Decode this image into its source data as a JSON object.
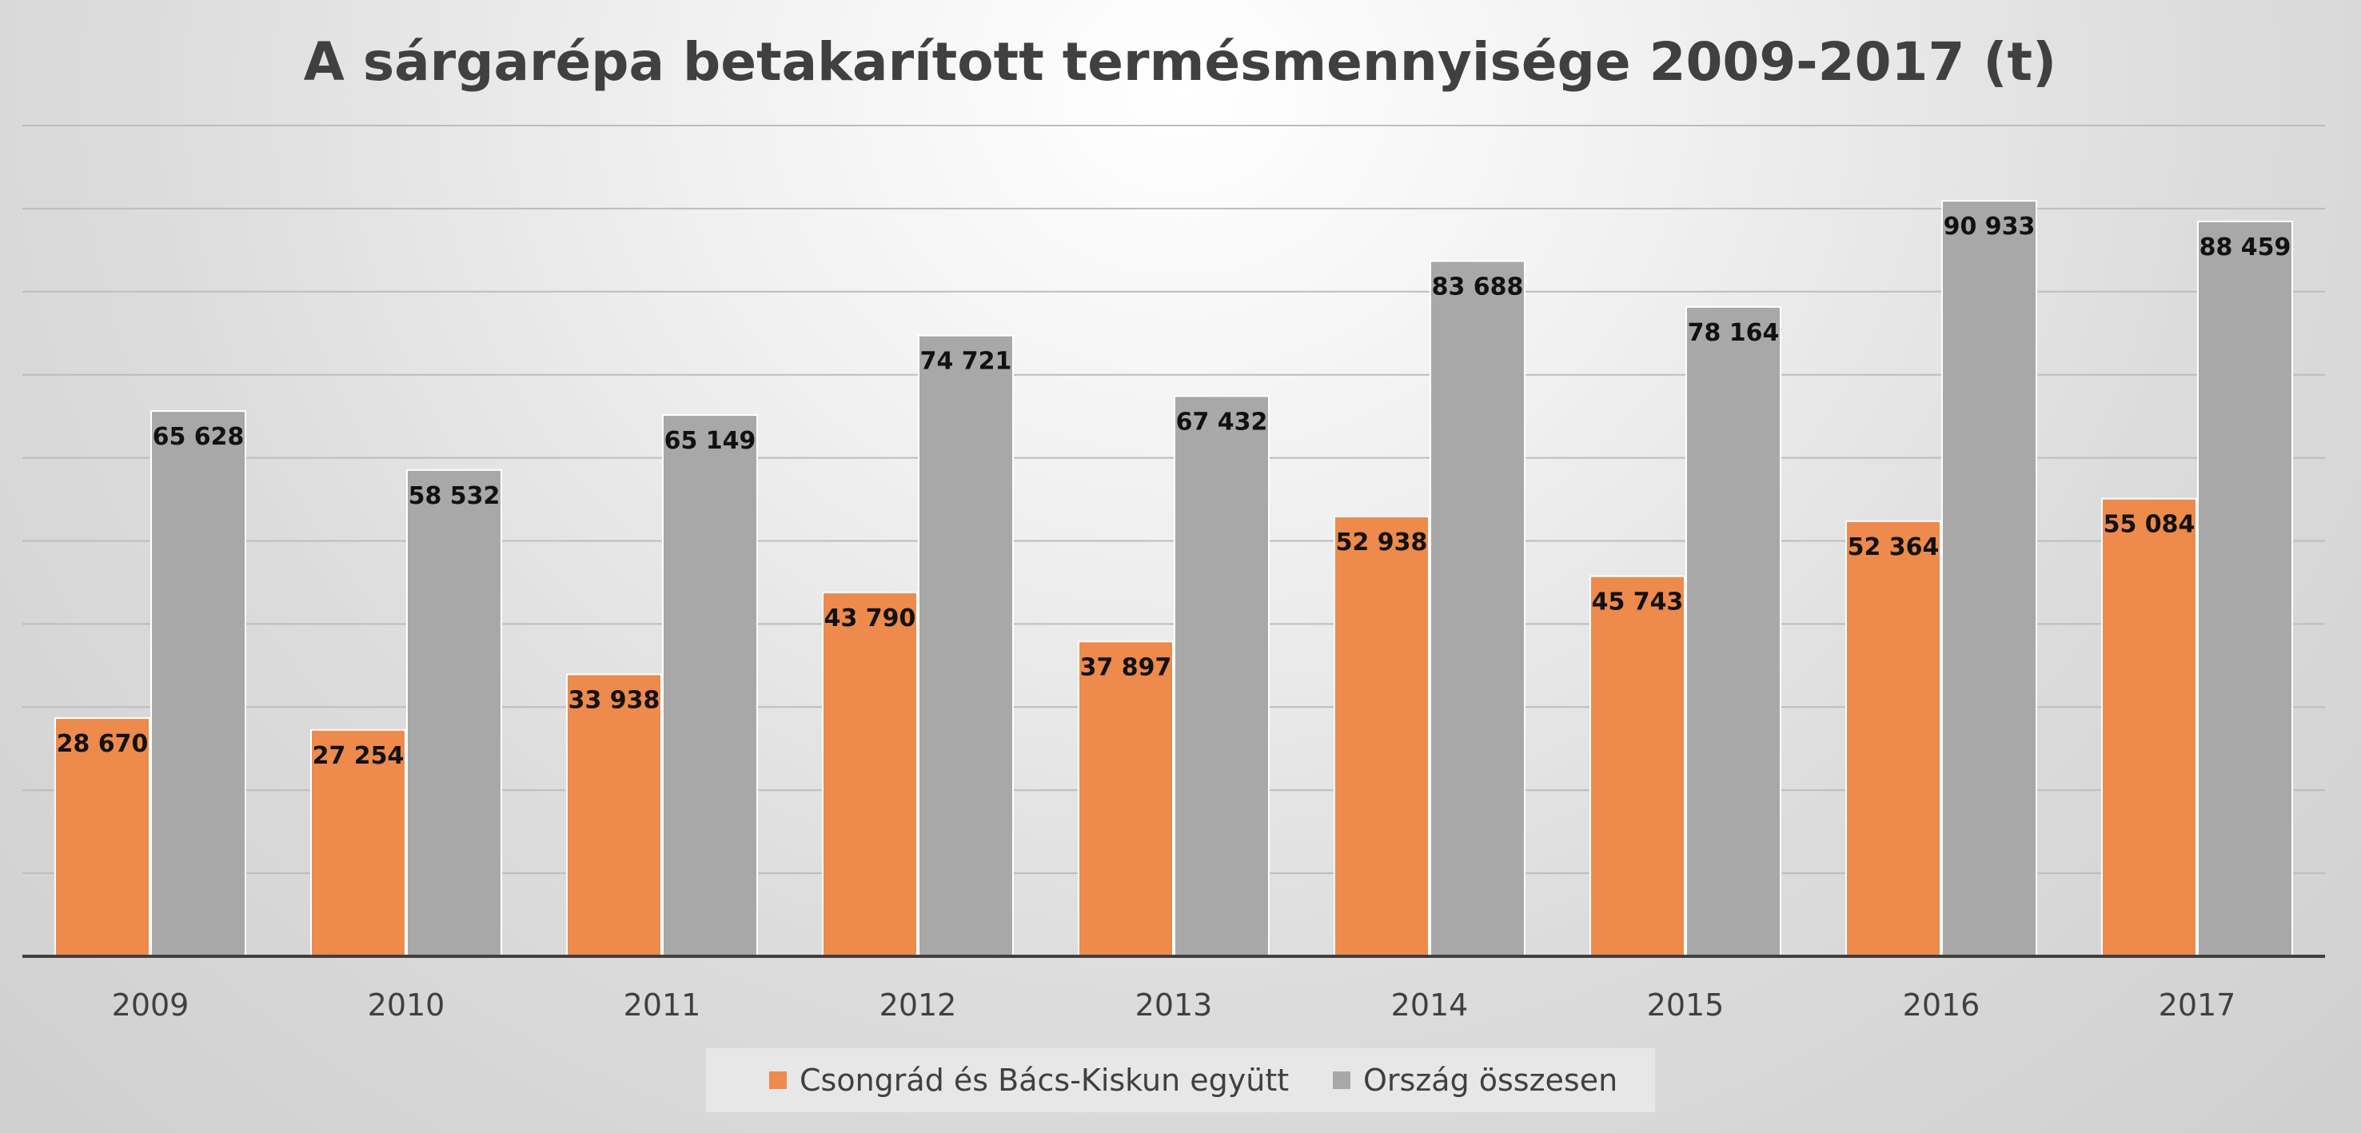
{
  "chart_data": {
    "type": "bar",
    "title": "A sárgarépa betakarított termésmennyisége 2009-2017 (t)",
    "xlabel": "",
    "ylabel": "",
    "categories": [
      "2009",
      "2010",
      "2011",
      "2012",
      "2013",
      "2014",
      "2015",
      "2016",
      "2017"
    ],
    "series": [
      {
        "name": "Csongrád és Bács-Kiskun együtt",
        "color": "#ed8a4c",
        "values": [
          28670,
          27254,
          33938,
          43790,
          37897,
          52938,
          45743,
          52364,
          55084
        ],
        "value_labels": [
          "28 670",
          "27 254",
          "33 938",
          "43 790",
          "37 897",
          "52 938",
          "45 743",
          "52 364",
          "55 084"
        ]
      },
      {
        "name": "Ország összesen",
        "color": "#a8a8a8",
        "values": [
          65628,
          58532,
          65149,
          74721,
          67432,
          83688,
          78164,
          90933,
          88459
        ],
        "value_labels": [
          "65 628",
          "58 532",
          "65 149",
          "74 721",
          "67 432",
          "83 688",
          "78 164",
          "90 933",
          "88 459"
        ]
      }
    ],
    "ylim": [
      0,
      100000
    ],
    "y_gridline_step": 10000,
    "y_tick_labels_visible": false,
    "grid": true,
    "legend_position": "bottom",
    "data_labels_position": "inside-end"
  }
}
